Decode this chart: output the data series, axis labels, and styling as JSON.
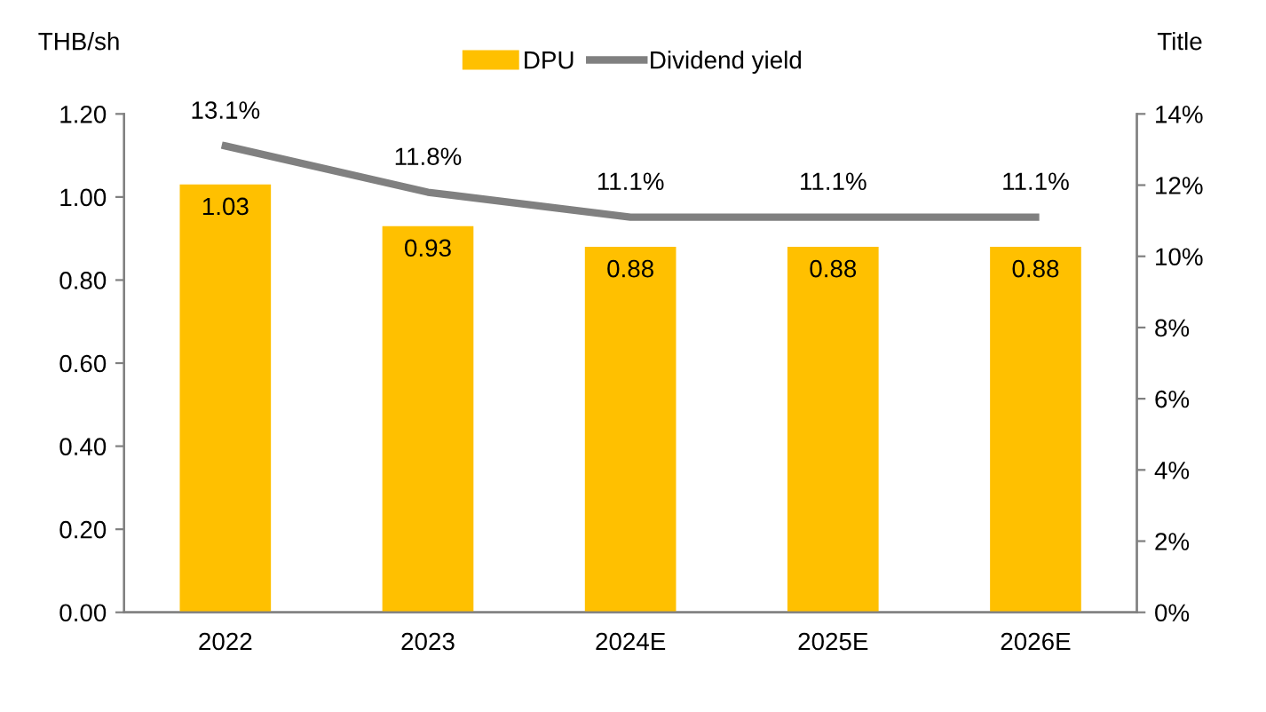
{
  "chart_data": {
    "type": "bar",
    "ylabel": "THB/sh",
    "y2label": "Title",
    "categories": [
      "2022",
      "2023",
      "2024E",
      "2025E",
      "2026E"
    ],
    "series": [
      {
        "name": "DPU",
        "color": "#ffc000",
        "values": [
          1.03,
          0.93,
          0.88,
          0.88,
          0.88
        ],
        "data_labels": true
      },
      {
        "name": "Dividend yield",
        "type": "line",
        "axis": "y2",
        "color": "#808080",
        "values": [
          13.1,
          11.8,
          11.1,
          11.1,
          11.1
        ],
        "value_labels": [
          "13.1%",
          "11.8%",
          "11.1%",
          "11.1%",
          "11.1%"
        ]
      }
    ],
    "ylim": [
      0,
      1.2
    ],
    "yticks": [
      {
        "value": 0,
        "label": "0.00"
      },
      {
        "value": 0.2,
        "label": "0.20"
      },
      {
        "value": 0.4,
        "label": "0.40"
      },
      {
        "value": 0.6,
        "label": "0.60"
      },
      {
        "value": 0.8,
        "label": "0.80"
      },
      {
        "value": 1.0,
        "label": "1.00"
      },
      {
        "value": 1.2,
        "label": "1.20"
      }
    ],
    "y2lim": [
      0,
      14
    ],
    "y2ticks": [
      {
        "value": 0,
        "label": "0%"
      },
      {
        "value": 2,
        "label": "2%"
      },
      {
        "value": 4,
        "label": "4%"
      },
      {
        "value": 6,
        "label": "6%"
      },
      {
        "value": 8,
        "label": "8%"
      },
      {
        "value": 10,
        "label": "10%"
      },
      {
        "value": 12,
        "label": "12%"
      },
      {
        "value": 14,
        "label": "14%"
      }
    ],
    "legend": "top",
    "grid": false
  }
}
